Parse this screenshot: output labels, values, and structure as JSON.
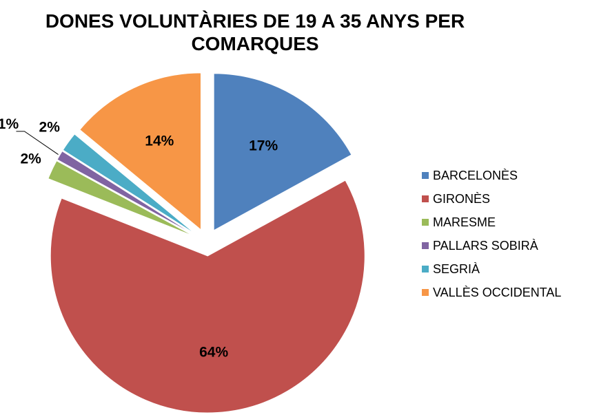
{
  "chart_data": {
    "type": "pie",
    "title": "DONES VOLUNTÀRIES DE 19 A 35 ANYS PER COMARQUES",
    "categories": [
      "BARCELONÈS",
      "GIRONÈS",
      "MARESME",
      "PALLARS SOBIRÀ",
      "SEGRIÀ",
      "VALLÈS OCCIDENTAL"
    ],
    "values": [
      17,
      64,
      2,
      1,
      2,
      14
    ],
    "value_labels": [
      "17%",
      "64%",
      "2%",
      "1%",
      "2%",
      "14%"
    ],
    "colors": [
      "#4f81bd",
      "#c0504d",
      "#9bbb59",
      "#8064a2",
      "#4bacc6",
      "#f79646"
    ],
    "legend": "right"
  }
}
